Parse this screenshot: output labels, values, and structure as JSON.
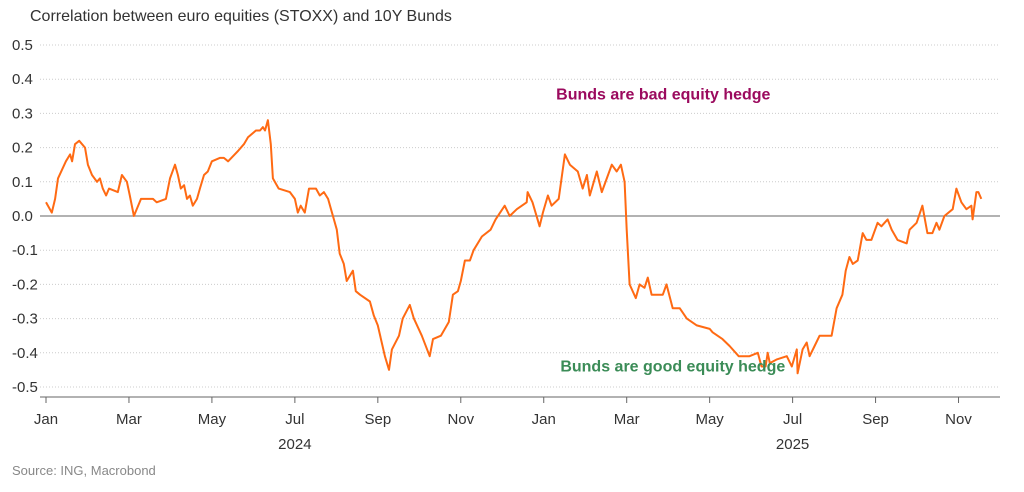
{
  "chart_data": {
    "type": "line",
    "title": "Correlation between euro equities (STOXX) and 10Y Bunds",
    "source": "Source: ING, Macrobond",
    "xlabel": "",
    "ylabel": "",
    "x_unit": "months since Jan 2024",
    "xlim": [
      0,
      23
    ],
    "ylim": [
      -0.5,
      0.5
    ],
    "y_ticks": [
      "0.5",
      "0.4",
      "0.3",
      "0.2",
      "0.1",
      "0.0",
      "-0.1",
      "-0.2",
      "-0.3",
      "-0.4",
      "-0.5"
    ],
    "y_tick_values": [
      0.5,
      0.4,
      0.3,
      0.2,
      0.1,
      0,
      -0.1,
      -0.2,
      -0.3,
      -0.4,
      -0.5
    ],
    "x_ticks": [
      {
        "label": "Jan",
        "month": 0
      },
      {
        "label": "Mar",
        "month": 2
      },
      {
        "label": "May",
        "month": 4
      },
      {
        "label": "Jul",
        "month": 6
      },
      {
        "label": "Sep",
        "month": 8
      },
      {
        "label": "Nov",
        "month": 10
      },
      {
        "label": "Jan",
        "month": 12
      },
      {
        "label": "Mar",
        "month": 14
      },
      {
        "label": "May",
        "month": 16
      },
      {
        "label": "Jul",
        "month": 18
      },
      {
        "label": "Sep",
        "month": 20
      },
      {
        "label": "Nov",
        "month": 22
      }
    ],
    "year_labels": [
      {
        "label": "2024",
        "month": 6
      },
      {
        "label": "2025",
        "month": 18
      }
    ],
    "grid": true,
    "annotations": [
      {
        "text": "Bunds are bad equity hedge",
        "month": 12.3,
        "y": 0.34,
        "color": "#9b0a5e"
      },
      {
        "text": "Bunds are good equity hedge",
        "month": 12.4,
        "y": -0.455,
        "color": "#3b8c57"
      }
    ],
    "series": [
      {
        "name": "Correlation",
        "color": "#ff6a13",
        "x": [
          0.0,
          0.14,
          0.22,
          0.29,
          0.48,
          0.58,
          0.63,
          0.7,
          0.8,
          0.94,
          1.01,
          1.11,
          1.23,
          1.3,
          1.37,
          1.45,
          1.52,
          1.73,
          1.83,
          1.95,
          2.02,
          2.12,
          2.29,
          2.51,
          2.58,
          2.67,
          2.89,
          2.99,
          3.11,
          3.18,
          3.25,
          3.33,
          3.4,
          3.47,
          3.54,
          3.64,
          3.71,
          3.81,
          3.9,
          4.0,
          4.19,
          4.29,
          4.39,
          4.55,
          4.63,
          4.77,
          4.87,
          5.06,
          5.16,
          5.23,
          5.28,
          5.35,
          5.42,
          5.47,
          5.61,
          5.88,
          6.0,
          6.07,
          6.14,
          6.24,
          6.34,
          6.51,
          6.6,
          6.7,
          6.8,
          6.87,
          6.94,
          7.01,
          7.08,
          7.18,
          7.25,
          7.4,
          7.47,
          7.57,
          7.81,
          7.9,
          8.0,
          8.17,
          8.27,
          8.34,
          8.51,
          8.6,
          8.77,
          8.87,
          9.06,
          9.25,
          9.33,
          9.52,
          9.71,
          9.81,
          9.93,
          10.0,
          10.1,
          10.22,
          10.31,
          10.51,
          10.72,
          10.84,
          11.06,
          11.18,
          11.35,
          11.59,
          11.61,
          11.73,
          11.9,
          11.98,
          12.1,
          12.19,
          12.36,
          12.51,
          12.63,
          12.82,
          12.94,
          13.04,
          13.11,
          13.28,
          13.4,
          13.52,
          13.64,
          13.76,
          13.86,
          13.95,
          14.0,
          14.07,
          14.22,
          14.31,
          14.43,
          14.51,
          14.6,
          14.87,
          14.96,
          15.11,
          15.28,
          15.45,
          15.69,
          16.0,
          16.07,
          16.31,
          16.48,
          16.7,
          16.96,
          17.16,
          17.25,
          17.35,
          17.4,
          17.45,
          17.61,
          17.86,
          17.98,
          18.1,
          18.12,
          18.24,
          18.34,
          18.41,
          18.53,
          18.65,
          18.94,
          19.06,
          19.2,
          19.28,
          19.37,
          19.45,
          19.57,
          19.69,
          19.78,
          19.9,
          20.05,
          20.14,
          20.29,
          20.39,
          20.53,
          20.75,
          20.82,
          20.99,
          21.13,
          21.25,
          21.37,
          21.47,
          21.54,
          21.66,
          21.86,
          21.95,
          22.07,
          22.19,
          22.31,
          22.34,
          22.43,
          22.48,
          22.55
        ],
        "y": [
          0.04,
          0.01,
          0.05,
          0.11,
          0.16,
          0.18,
          0.16,
          0.21,
          0.22,
          0.2,
          0.15,
          0.12,
          0.1,
          0.11,
          0.08,
          0.06,
          0.08,
          0.07,
          0.12,
          0.1,
          0.06,
          0.0,
          0.05,
          0.05,
          0.05,
          0.04,
          0.05,
          0.11,
          0.15,
          0.12,
          0.08,
          0.09,
          0.05,
          0.06,
          0.03,
          0.05,
          0.08,
          0.12,
          0.13,
          0.16,
          0.17,
          0.17,
          0.16,
          0.18,
          0.19,
          0.21,
          0.23,
          0.25,
          0.25,
          0.26,
          0.25,
          0.28,
          0.21,
          0.11,
          0.08,
          0.07,
          0.05,
          0.01,
          0.03,
          0.01,
          0.08,
          0.08,
          0.06,
          0.07,
          0.05,
          0.02,
          -0.01,
          -0.04,
          -0.11,
          -0.14,
          -0.19,
          -0.16,
          -0.22,
          -0.23,
          -0.25,
          -0.29,
          -0.32,
          -0.41,
          -0.45,
          -0.39,
          -0.35,
          -0.3,
          -0.26,
          -0.3,
          -0.35,
          -0.41,
          -0.36,
          -0.35,
          -0.31,
          -0.23,
          -0.22,
          -0.19,
          -0.13,
          -0.13,
          -0.1,
          -0.06,
          -0.04,
          -0.01,
          0.03,
          0.0,
          0.02,
          0.04,
          0.07,
          0.04,
          -0.03,
          0.01,
          0.06,
          0.03,
          0.05,
          0.18,
          0.15,
          0.13,
          0.08,
          0.12,
          0.06,
          0.13,
          0.07,
          0.11,
          0.15,
          0.13,
          0.15,
          0.1,
          -0.04,
          -0.2,
          -0.24,
          -0.2,
          -0.21,
          -0.18,
          -0.23,
          -0.23,
          -0.2,
          -0.27,
          -0.27,
          -0.3,
          -0.32,
          -0.33,
          -0.34,
          -0.36,
          -0.38,
          -0.41,
          -0.41,
          -0.4,
          -0.44,
          -0.44,
          -0.4,
          -0.43,
          -0.42,
          -0.41,
          -0.44,
          -0.39,
          -0.46,
          -0.39,
          -0.37,
          -0.41,
          -0.38,
          -0.35,
          -0.35,
          -0.27,
          -0.23,
          -0.16,
          -0.12,
          -0.14,
          -0.13,
          -0.05,
          -0.07,
          -0.07,
          -0.02,
          -0.03,
          -0.01,
          -0.04,
          -0.07,
          -0.08,
          -0.04,
          -0.02,
          0.03,
          -0.05,
          -0.05,
          -0.02,
          -0.04,
          0.0,
          0.02,
          0.08,
          0.04,
          0.02,
          0.03,
          -0.01,
          0.07,
          0.07,
          0.05
        ]
      }
    ]
  }
}
